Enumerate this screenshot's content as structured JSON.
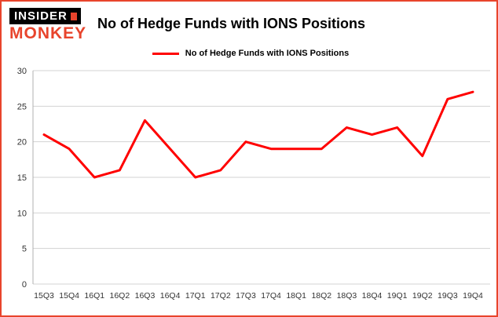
{
  "brand": {
    "logo_top": "INSIDER",
    "logo_bottom": "MONKEY"
  },
  "header": {
    "title": "No of Hedge Funds with IONS Positions"
  },
  "legend": {
    "label": "No of Hedge Funds with IONS Positions"
  },
  "colors": {
    "line": "#ff0000",
    "border": "#e8442c",
    "grid": "#d3d3d3",
    "axis": "#b0b0b0",
    "tick_text": "#333333"
  },
  "chart_data": {
    "type": "line",
    "title": "No of Hedge Funds with IONS Positions",
    "categories": [
      "15Q3",
      "15Q4",
      "16Q1",
      "16Q2",
      "16Q3",
      "16Q4",
      "17Q1",
      "17Q2",
      "17Q3",
      "17Q4",
      "18Q1",
      "18Q2",
      "18Q3",
      "18Q4",
      "19Q1",
      "19Q2",
      "19Q3",
      "19Q4"
    ],
    "values": [
      21,
      19,
      15,
      16,
      23,
      19,
      15,
      16,
      20,
      19,
      19,
      19,
      22,
      21,
      22,
      18,
      26,
      27
    ],
    "xlabel": "",
    "ylabel": "",
    "ylim": [
      0,
      30
    ],
    "yticks": [
      0,
      5,
      10,
      15,
      20,
      25,
      30
    ],
    "grid": true,
    "legend_position": "top"
  }
}
